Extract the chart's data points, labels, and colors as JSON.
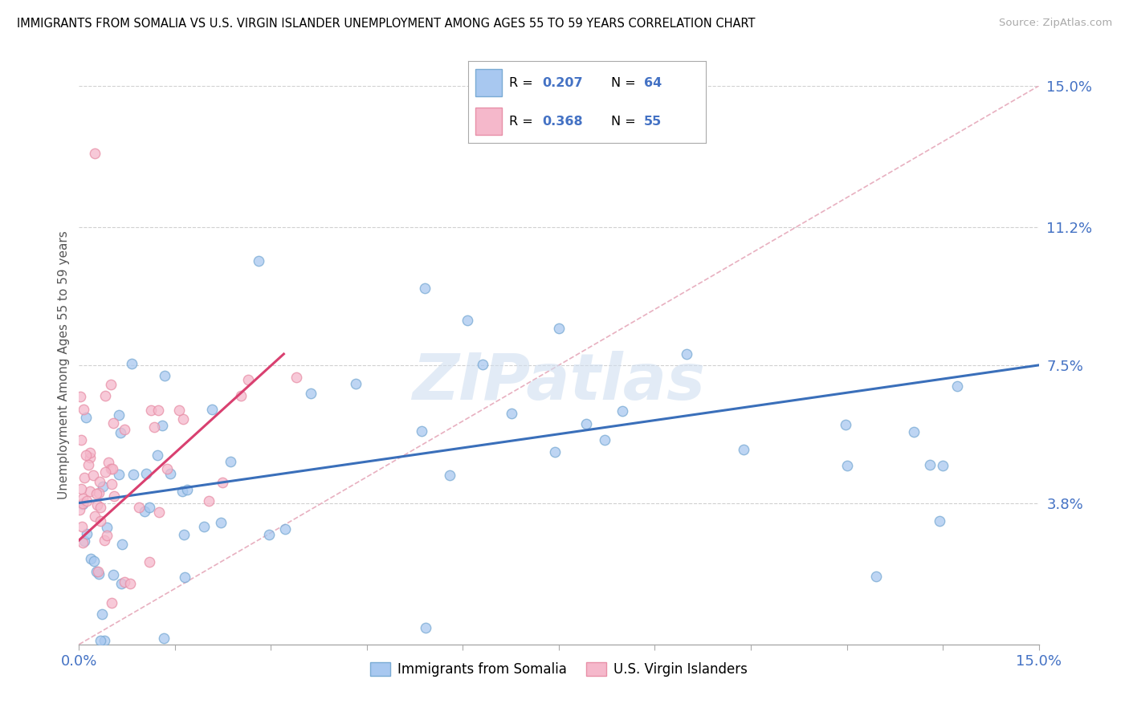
{
  "title": "IMMIGRANTS FROM SOMALIA VS U.S. VIRGIN ISLANDER UNEMPLOYMENT AMONG AGES 55 TO 59 YEARS CORRELATION CHART",
  "source": "Source: ZipAtlas.com",
  "ylabel": "Unemployment Among Ages 55 to 59 years",
  "xlim": [
    0.0,
    15.0
  ],
  "ylim": [
    0.0,
    15.0
  ],
  "x_tick_labels": [
    "0.0%",
    "15.0%"
  ],
  "y_tick_vals": [
    0.0,
    3.8,
    7.5,
    11.2,
    15.0
  ],
  "y_tick_labels": [
    "",
    "3.8%",
    "7.5%",
    "11.2%",
    "15.0%"
  ],
  "watermark": "ZIPatlas",
  "legend_R_blue": "0.207",
  "legend_N_blue": "64",
  "legend_R_pink": "0.368",
  "legend_N_pink": "55",
  "blue_color": "#a8c8f0",
  "pink_color": "#f5b8cb",
  "blue_edge_color": "#7aabd4",
  "pink_edge_color": "#e890a8",
  "blue_line_color": "#3a6fba",
  "pink_line_color": "#d94070",
  "diag_color": "#e8b0c0",
  "label_color": "#4472c4",
  "grid_color": "#d0d0d0",
  "blue_line_x0": 0.0,
  "blue_line_y0": 3.8,
  "blue_line_x1": 15.0,
  "blue_line_y1": 7.5,
  "pink_line_x0": 0.0,
  "pink_line_y0": 2.8,
  "pink_line_x1": 3.2,
  "pink_line_y1": 7.8
}
